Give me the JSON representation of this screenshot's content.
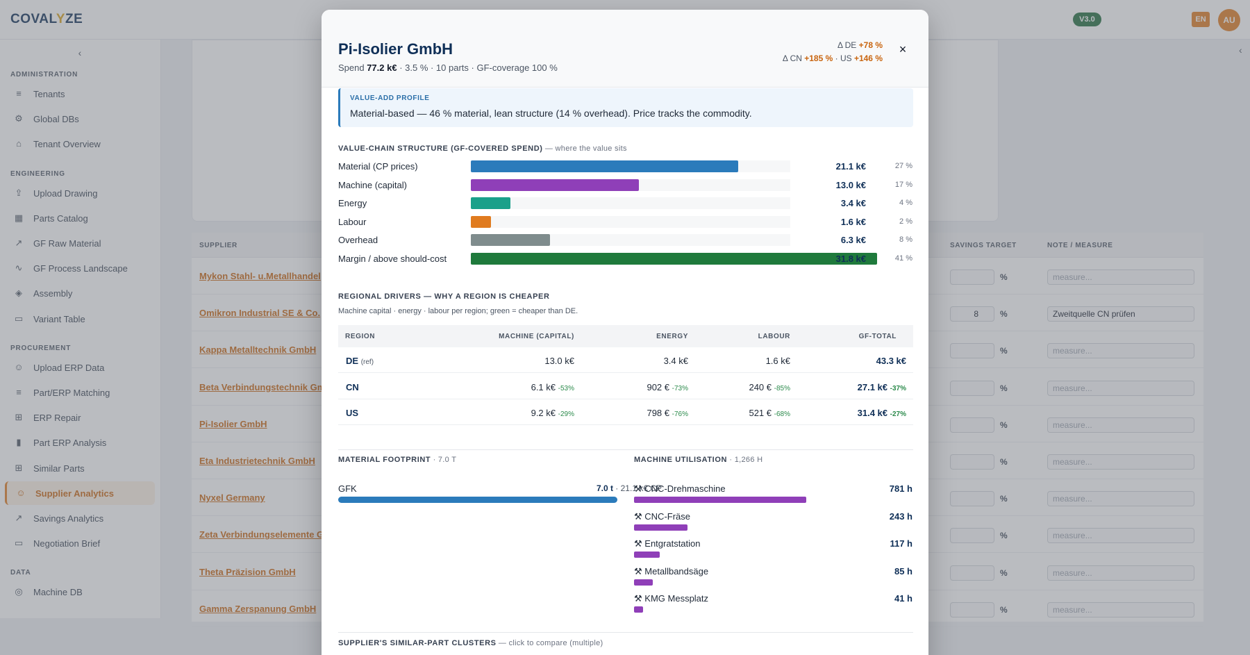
{
  "app": {
    "logo": "COVALYZE",
    "version": "V3.0",
    "lang": "EN",
    "avatar": "AU"
  },
  "sidebar": {
    "sections": [
      {
        "label": "ADMINISTRATION",
        "items": [
          {
            "label": "Tenants",
            "icon": "database-icon"
          },
          {
            "label": "Global DBs",
            "icon": "gear-icon"
          },
          {
            "label": "Tenant Overview",
            "icon": "home-icon"
          }
        ]
      },
      {
        "label": "ENGINEERING",
        "items": [
          {
            "label": "Upload Drawing",
            "icon": "upload-icon"
          },
          {
            "label": "Parts Catalog",
            "icon": "table-icon"
          },
          {
            "label": "GF Raw Material",
            "icon": "trend-icon"
          },
          {
            "label": "GF Process Landscape",
            "icon": "pulse-icon"
          },
          {
            "label": "Assembly",
            "icon": "layers-icon"
          },
          {
            "label": "Variant Table",
            "icon": "document-icon"
          }
        ]
      },
      {
        "label": "PROCUREMENT",
        "items": [
          {
            "label": "Upload ERP Data",
            "icon": "users-icon"
          },
          {
            "label": "Part/ERP Matching",
            "icon": "database-icon"
          },
          {
            "label": "ERP Repair",
            "icon": "grid-icon"
          },
          {
            "label": "Part ERP Analysis",
            "icon": "bar-chart-icon"
          },
          {
            "label": "Similar Parts",
            "icon": "grid-icon"
          },
          {
            "label": "Supplier Analytics",
            "icon": "users-icon",
            "active": true
          },
          {
            "label": "Savings Analytics",
            "icon": "trend-icon"
          },
          {
            "label": "Negotiation Brief",
            "icon": "document-icon"
          }
        ]
      },
      {
        "label": "DATA",
        "items": [
          {
            "label": "Machine DB",
            "icon": "target-icon"
          }
        ]
      }
    ]
  },
  "table": {
    "headers": {
      "supplier": "SUPPLIER",
      "savings_target": "SAVINGS TARGET",
      "note": "NOTE / MEASURE"
    },
    "pct_symbol": "%",
    "rows": [
      {
        "supplier": "Mykon Stahl- u.Metallhandel",
        "savings": "",
        "note": "",
        "note_placeholder": "measure..."
      },
      {
        "supplier": "Omikron Industrial SE & Co.",
        "savings": "8",
        "note": "Zweitquelle CN prüfen",
        "note_placeholder": "measure..."
      },
      {
        "supplier": "Kappa Metalltechnik GmbH",
        "savings": "",
        "note": "",
        "note_placeholder": "measure..."
      },
      {
        "supplier": "Beta Verbindungstechnik GmbH",
        "savings": "",
        "note": "",
        "note_placeholder": "measure..."
      },
      {
        "supplier": "Pi-Isolier GmbH",
        "savings": "",
        "note": "",
        "note_placeholder": "measure..."
      },
      {
        "supplier": "Eta Industrietechnik GmbH",
        "savings": "",
        "note": "",
        "note_placeholder": "measure..."
      },
      {
        "supplier": "Nyxel Germany",
        "savings": "",
        "note": "",
        "note_placeholder": "measure..."
      },
      {
        "supplier": "Zeta Verbindungselemente GmbH",
        "savings": "",
        "note": "",
        "note_placeholder": "measure..."
      },
      {
        "supplier": "Theta Präzision GmbH",
        "savings": "",
        "note": "",
        "note_placeholder": "measure..."
      },
      {
        "supplier": "Gamma Zerspanung GmbH",
        "savings": "",
        "note": "",
        "note_placeholder": "measure..."
      }
    ]
  },
  "modal": {
    "title": "Pi-Isolier GmbH",
    "spend_prefix": "Spend ",
    "spend_value": "77.2 k€",
    "spend_rest": " · 3.5 % · 10 parts · GF-coverage 100 %",
    "delta_de_label": "Δ DE ",
    "delta_de": "+78 %",
    "delta_cn_label": "Δ CN ",
    "delta_cn": "+185 %",
    "delta_us_label": " · US ",
    "delta_us": "+146 %",
    "close": "×",
    "profile_label": "VALUE-ADD PROFILE",
    "profile_text": "Material-based — 46 % material, lean structure (14 % overhead). Price tracks the commodity.",
    "value_chain_title": "VALUE-CHAIN STRUCTURE (GF-COVERED SPEND)",
    "value_chain_sub": " — where the value sits",
    "value_chain": [
      {
        "label": "Material (CP prices)",
        "value": "21.1 k€",
        "share": 27,
        "pct": "27 %",
        "color": "#2b7bbb"
      },
      {
        "label": "Machine (capital)",
        "value": "13.0 k€",
        "share": 17,
        "pct": "17 %",
        "color": "#8f3fb8"
      },
      {
        "label": "Energy",
        "value": "3.4 k€",
        "share": 4,
        "pct": "4 %",
        "color": "#1aa08a"
      },
      {
        "label": "Labour",
        "value": "1.6 k€",
        "share": 2,
        "pct": "2 %",
        "color": "#e07b1f"
      },
      {
        "label": "Overhead",
        "value": "6.3 k€",
        "share": 8,
        "pct": "8 %",
        "color": "#7f8c8d"
      },
      {
        "label": "Margin / above should-cost",
        "value": "31.8 k€",
        "share": 41,
        "pct": "41 %",
        "color": "#1f7a3c"
      }
    ],
    "regional_title": "REGIONAL DRIVERS — WHY A REGION IS CHEAPER",
    "regional_desc": "Machine capital · energy · labour per region; green = cheaper than DE.",
    "regional_headers": {
      "region": "REGION",
      "machine": "MACHINE (CAPITAL)",
      "energy": "ENERGY",
      "labour": "LABOUR",
      "total": "GF-TOTAL"
    },
    "regions": [
      {
        "name": "DE",
        "tag": "(ref)",
        "machine": "13.0 k€",
        "machine_d": "",
        "energy": "3.4 k€",
        "energy_d": "",
        "labour": "1.6 k€",
        "labour_d": "",
        "total": "43.3 k€",
        "total_d": ""
      },
      {
        "name": "CN",
        "tag": "",
        "machine": "6.1 k€",
        "machine_d": "-53%",
        "energy": "902 €",
        "energy_d": "-73%",
        "labour": "240 €",
        "labour_d": "-85%",
        "total": "27.1 k€",
        "total_d": "-37%"
      },
      {
        "name": "US",
        "tag": "",
        "machine": "9.2 k€",
        "machine_d": "-29%",
        "energy": "798 €",
        "energy_d": "-76%",
        "labour": "521 €",
        "labour_d": "-68%",
        "total": "31.4 k€",
        "total_d": "-27%"
      }
    ],
    "material_title": "MATERIAL FOOTPRINT",
    "material_sub": " · 7.0 T",
    "material": {
      "label": "GFK",
      "value": "7.0 t",
      "rest": " · 21.1 k€ CP",
      "share": 1
    },
    "machine_title": "MACHINE UTILISATION",
    "machine_sub": " · 1,266 H",
    "machines": [
      {
        "label": "CNC-Drehmaschine",
        "hours": "781 h",
        "value": 781
      },
      {
        "label": "CNC-Fräse",
        "hours": "243 h",
        "value": 243
      },
      {
        "label": "Entgratstation",
        "hours": "117 h",
        "value": 117
      },
      {
        "label": "Metallbandsäge",
        "hours": "85 h",
        "value": 85
      },
      {
        "label": "KMG Messplatz",
        "hours": "41 h",
        "value": 41
      }
    ],
    "clusters_title": "SUPPLIER'S SIMILAR-PART CLUSTERS",
    "clusters_sub": " — click to compare (multiple)"
  }
}
